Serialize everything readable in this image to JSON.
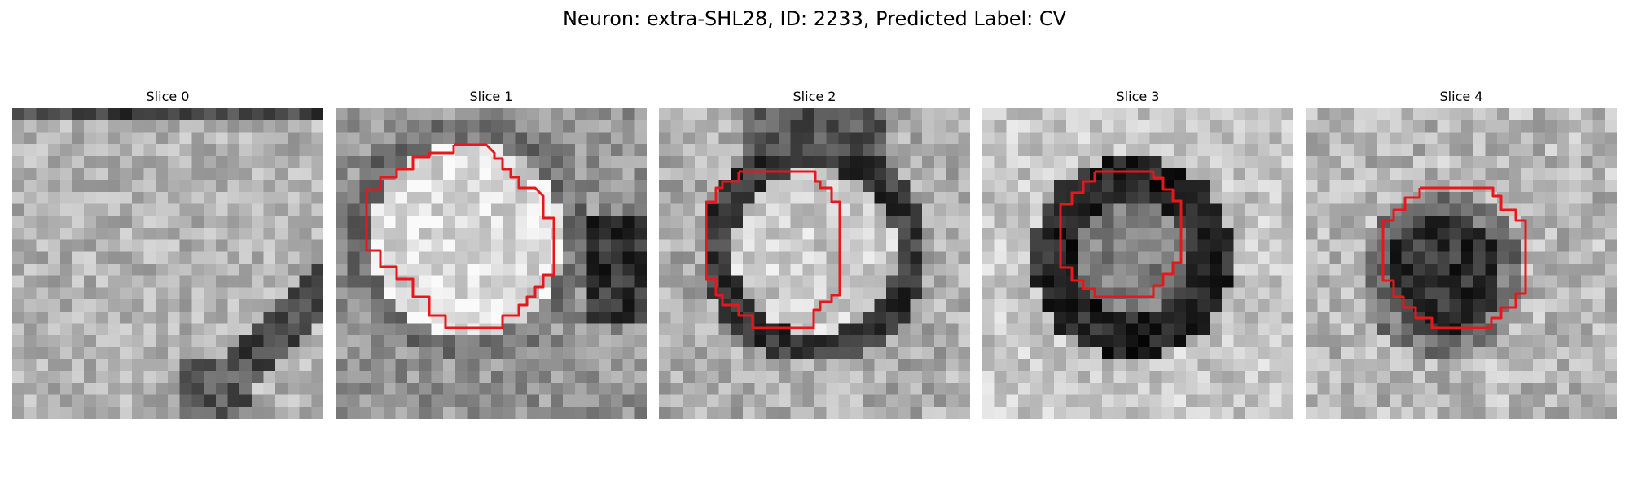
{
  "figure": {
    "title": "Neuron: extra-SHL28, ID: 2233, Predicted Label: CV",
    "overlay_color": "#e8171b",
    "background_color": "#ffffff",
    "colormap": "grayscale"
  },
  "slices": [
    {
      "title": "Slice 0",
      "has_contour": false,
      "scene": "membrane"
    },
    {
      "title": "Slice 1",
      "has_contour": true,
      "scene": "bright-vesicle"
    },
    {
      "title": "Slice 2",
      "has_contour": true,
      "scene": "ring-vesicle"
    },
    {
      "title": "Slice 3",
      "has_contour": true,
      "scene": "dark-ring"
    },
    {
      "title": "Slice 4",
      "has_contour": true,
      "scene": "dark-blob"
    }
  ]
}
